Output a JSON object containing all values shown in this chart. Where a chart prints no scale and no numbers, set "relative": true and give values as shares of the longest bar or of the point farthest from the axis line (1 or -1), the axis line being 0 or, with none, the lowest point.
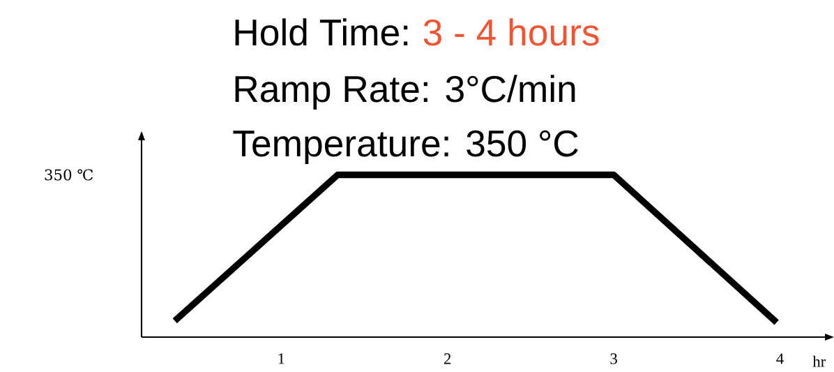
{
  "chart_data": {
    "type": "line",
    "relative": true,
    "xlabel": "hr",
    "annotations": [
      "Hold Time:",
      "3 - 4 hours",
      "Ramp Rate: 3°C/min",
      "Temperature: 350 °C",
      "350 ℃"
    ],
    "x": [
      0.36,
      1.34,
      3.0,
      3.98
    ],
    "series": [
      {
        "color": "#000000",
        "values": [
          0.1,
          1,
          1,
          0.09
        ]
      }
    ],
    "xlim": [
      0.16,
      4.3
    ],
    "xticks": [
      1,
      2,
      3,
      4
    ],
    "grid": false,
    "marker": "none",
    "line_style": "solid"
  }
}
